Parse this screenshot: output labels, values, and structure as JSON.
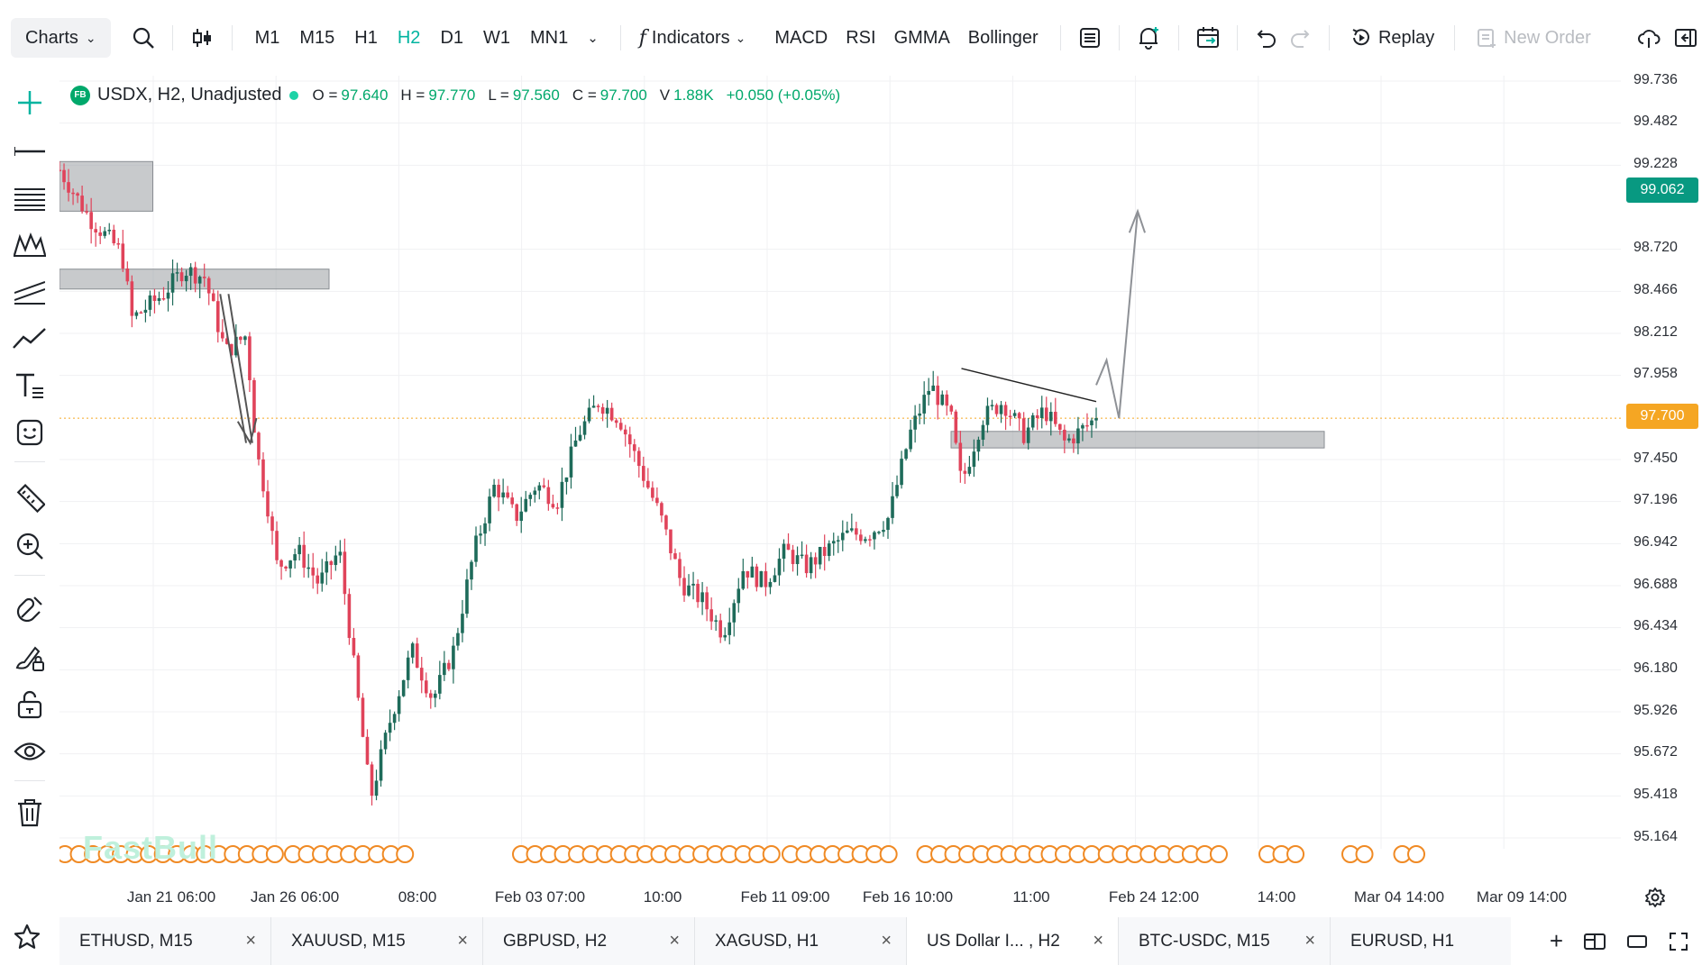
{
  "toolbar": {
    "charts_label": "Charts",
    "timeframes": [
      "M1",
      "M15",
      "H1",
      "H2",
      "D1",
      "W1",
      "MN1"
    ],
    "active_timeframe": "H2",
    "indicators_label": "Indicators",
    "quick_indicators": [
      "MACD",
      "RSI",
      "GMMA",
      "Bollinger"
    ],
    "replay_label": "Replay",
    "new_order_label": "New Order"
  },
  "legend": {
    "badge": "FB",
    "symbol": "USDX, H2, Unadjusted",
    "o_key": "O =",
    "o_val": "97.640",
    "h_key": "H =",
    "h_val": "97.770",
    "l_key": "L =",
    "l_val": "97.560",
    "c_key": "C =",
    "c_val": "97.700",
    "v_key": "V",
    "v_val": "1.88K",
    "change": "+0.050 (+0.05%)"
  },
  "watermark": "FastBull",
  "price_axis": {
    "labels": [
      "99.736",
      "99.482",
      "99.228",
      "98.720",
      "98.466",
      "98.212",
      "97.958",
      "97.450",
      "97.196",
      "96.942",
      "96.688",
      "96.434",
      "96.180",
      "95.926",
      "95.672",
      "95.418",
      "95.164"
    ],
    "tag_green": "99.062",
    "tag_current": "97.700"
  },
  "time_axis": {
    "labels": [
      "Jan 21 06:00",
      "Jan 26 06:00",
      "08:00",
      "Feb 03 07:00",
      "10:00",
      "Feb 11 09:00",
      "Feb 16 10:00",
      "11:00",
      "Feb 24 12:00",
      "14:00",
      "Mar 04 14:00",
      "Mar 09 14:00"
    ]
  },
  "chart_data": {
    "type": "candlestick",
    "symbol": "USDX",
    "timeframe": "H2",
    "y_axis_ticks": [
      95.164,
      95.418,
      95.672,
      95.926,
      96.18,
      96.434,
      96.688,
      96.942,
      97.196,
      97.45,
      97.958,
      98.212,
      98.466,
      98.72,
      99.228,
      99.482,
      99.736
    ],
    "current_price": 97.7,
    "green_tag_price": 99.062,
    "last_bar": {
      "open": 97.64,
      "high": 97.77,
      "low": 97.56,
      "close": 97.7,
      "volume": "1.88K"
    },
    "path": [
      [
        0,
        99.2
      ],
      [
        0.03,
        98.9
      ],
      [
        0.06,
        98.7
      ],
      [
        0.07,
        98.3
      ],
      [
        0.1,
        98.45
      ],
      [
        0.12,
        98.6
      ],
      [
        0.14,
        98.55
      ],
      [
        0.16,
        98.1
      ],
      [
        0.18,
        98.2
      ],
      [
        0.19,
        97.5
      ],
      [
        0.2,
        97.2
      ],
      [
        0.21,
        96.8
      ],
      [
        0.23,
        96.9
      ],
      [
        0.25,
        96.7
      ],
      [
        0.27,
        96.9
      ],
      [
        0.3,
        95.4
      ],
      [
        0.32,
        95.9
      ],
      [
        0.34,
        96.3
      ],
      [
        0.36,
        96.0
      ],
      [
        0.38,
        96.3
      ],
      [
        0.4,
        96.9
      ],
      [
        0.42,
        97.3
      ],
      [
        0.44,
        97.1
      ],
      [
        0.46,
        97.3
      ],
      [
        0.48,
        97.2
      ],
      [
        0.5,
        97.6
      ],
      [
        0.52,
        97.8
      ],
      [
        0.54,
        97.7
      ],
      [
        0.56,
        97.4
      ],
      [
        0.58,
        97.1
      ],
      [
        0.6,
        96.7
      ],
      [
        0.62,
        96.6
      ],
      [
        0.64,
        96.4
      ],
      [
        0.66,
        96.8
      ],
      [
        0.68,
        96.7
      ],
      [
        0.7,
        96.9
      ],
      [
        0.72,
        96.8
      ],
      [
        0.74,
        96.9
      ],
      [
        0.76,
        97.0
      ],
      [
        0.78,
        97.0
      ],
      [
        0.8,
        97.1
      ],
      [
        0.82,
        97.6
      ],
      [
        0.84,
        97.9
      ],
      [
        0.86,
        97.7
      ],
      [
        0.87,
        97.3
      ],
      [
        0.89,
        97.7
      ],
      [
        0.91,
        97.8
      ],
      [
        0.93,
        97.6
      ],
      [
        0.95,
        97.75
      ],
      [
        0.97,
        97.55
      ],
      [
        1.0,
        97.7
      ]
    ],
    "zones": [
      {
        "from": 0.0,
        "to": 0.09,
        "top": 99.25,
        "bottom": 98.95
      },
      {
        "from": 0.0,
        "to": 0.26,
        "top": 98.6,
        "bottom": 98.48
      },
      {
        "from": 0.86,
        "to": 1.22,
        "top": 97.62,
        "bottom": 97.52
      }
    ],
    "grid": true
  },
  "tabs": [
    {
      "label": "ETHUSD, M15"
    },
    {
      "label": "XAUUSD, M15"
    },
    {
      "label": "GBPUSD, H2"
    },
    {
      "label": "XAGUSD, H1"
    },
    {
      "label": "US Dollar I... , H2",
      "active": true
    },
    {
      "label": "BTC-USDC, M15"
    },
    {
      "label": "EURUSD, H1"
    }
  ],
  "colors": {
    "accent": "#00b4a0",
    "up": "#1e6b5a",
    "down": "#e0435a",
    "price_tag": "#f5a623",
    "green_tag": "#089981",
    "events": "#f08a24"
  }
}
